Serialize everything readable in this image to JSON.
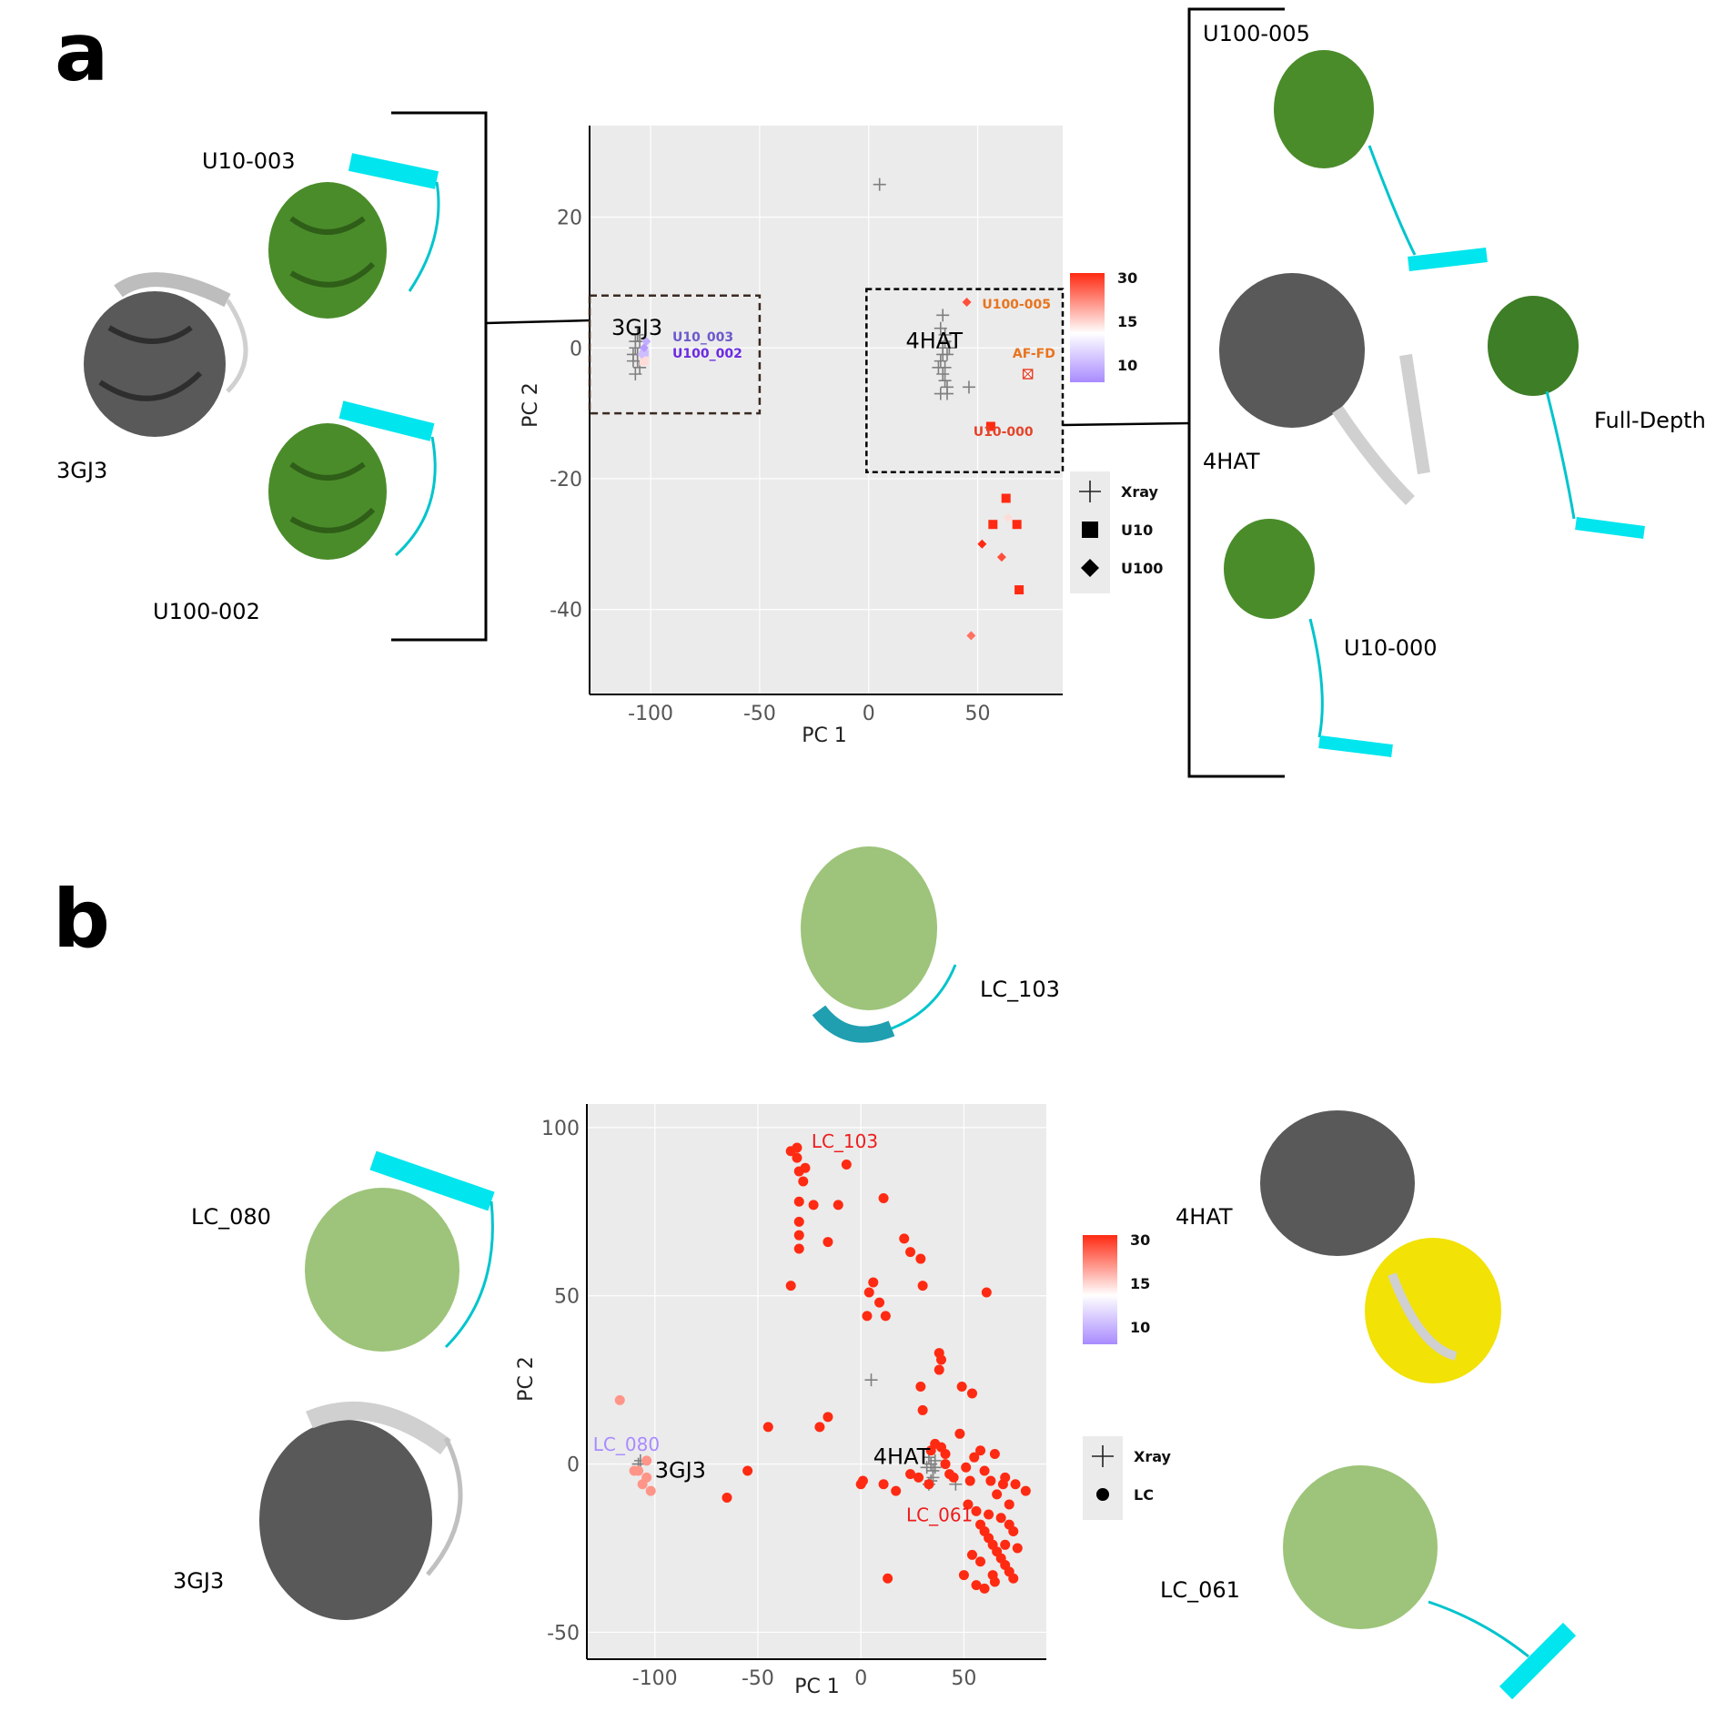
{
  "panels": {
    "a": "a",
    "b": "b"
  },
  "panel_a": {
    "labels": {
      "left_ref": "3GJ3",
      "left_top": "U10-003",
      "left_bottom": "U100-002",
      "right_top": "U100-005",
      "right_ref": "4HAT",
      "right_full": "Full-Depth",
      "right_bottom": "U10-000"
    }
  },
  "panel_b": {
    "labels": {
      "top": "LC_103",
      "left_top": "LC_080",
      "left_ref": "3GJ3",
      "right_ref": "4HAT",
      "right_bottom": "LC_061"
    }
  },
  "colors": {
    "xray": "#7f7f7f",
    "ref_gray": "#595959",
    "model_green": "#4a8c2a",
    "model_lightgreen": "#9dc47a",
    "helix_cyan": "#00e5ee",
    "yellow": "#f2e205",
    "scale_low": "#a98bff",
    "scale_mid": "#ffffff",
    "scale_high": "#ff2a12",
    "panel_bg": "#ebebeb"
  },
  "chart_data": [
    {
      "type": "scatter",
      "xlabel": "PC 1",
      "ylabel": "PC 2",
      "xlim": [
        -128,
        89
      ],
      "ylim": [
        -53,
        34
      ],
      "xticks": [
        -100,
        -50,
        0,
        50
      ],
      "yticks": [
        20,
        0,
        -20,
        -40
      ],
      "grid": true,
      "colorbar": {
        "ticks": [
          30,
          15,
          10
        ]
      },
      "legend": {
        "position": "right",
        "entries": [
          "Xray",
          "U10",
          "U100"
        ]
      },
      "series": [
        {
          "name": "Xray",
          "marker": "plus",
          "points": [
            [
              5,
              25
            ],
            [
              -107,
              1
            ],
            [
              -106,
              -1
            ],
            [
              -108,
              -2
            ],
            [
              -105,
              -3
            ],
            [
              -107,
              0
            ],
            [
              -106,
              2
            ],
            [
              -104,
              -1
            ],
            [
              -108,
              -1
            ],
            [
              -105,
              1
            ],
            [
              -107,
              -4
            ],
            [
              -106,
              -2
            ],
            [
              34,
              5
            ],
            [
              33,
              3
            ],
            [
              35,
              2
            ],
            [
              34,
              0
            ],
            [
              36,
              -1
            ],
            [
              33,
              -2
            ],
            [
              35,
              -3
            ],
            [
              34,
              -4
            ],
            [
              36,
              -6
            ],
            [
              33,
              -7
            ],
            [
              36,
              -7
            ],
            [
              35,
              1
            ],
            [
              34,
              -1
            ],
            [
              37,
              0
            ],
            [
              32,
              -3
            ],
            [
              35,
              -5
            ],
            [
              46,
              -6
            ]
          ]
        },
        {
          "name": "U10",
          "marker": "square",
          "points": [
            [
              -103,
              -1,
              8
            ],
            [
              -103,
              -2,
              14
            ],
            [
              56,
              -12,
              26
            ],
            [
              57,
              -27,
              24
            ],
            [
              63,
              -23,
              25
            ],
            [
              68,
              -27,
              24
            ],
            [
              69,
              -37,
              25
            ]
          ]
        },
        {
          "name": "U100",
          "marker": "diamond",
          "points": [
            [
              -103,
              0,
              6
            ],
            [
              -102,
              1,
              7
            ],
            [
              -104,
              -1,
              8
            ],
            [
              45,
              7,
              22
            ],
            [
              52,
              -30,
              24
            ],
            [
              61,
              -32,
              22
            ],
            [
              64,
              -26,
              14
            ],
            [
              47,
              -44,
              20
            ]
          ]
        }
      ],
      "annotations": [
        {
          "text": "3GJ3",
          "x": -118,
          "y": 2,
          "color": "#000000"
        },
        {
          "text": "4HAT",
          "x": 17,
          "y": 0,
          "color": "#000000"
        },
        {
          "text": "U10_003",
          "x": -90,
          "y": 1,
          "color": "#6a5acd"
        },
        {
          "text": "U100_002",
          "x": -90,
          "y": -1.5,
          "color": "#6a2be2"
        },
        {
          "text": "U100-005",
          "x": 52,
          "y": 6,
          "color": "#e8741e"
        },
        {
          "text": "AF-FD",
          "x": 66,
          "y": -1.5,
          "color": "#e8741e"
        },
        {
          "text": "U10-000",
          "x": 48,
          "y": -13.5,
          "color": "#e5432a"
        }
      ],
      "af_fd_point": [
        73,
        -4
      ]
    },
    {
      "type": "scatter",
      "xlabel": "PC 1",
      "ylabel": "PC 2",
      "xlim": [
        -133,
        90
      ],
      "ylim": [
        -58,
        107
      ],
      "xticks": [
        -100,
        -50,
        0,
        50
      ],
      "yticks": [
        100,
        50,
        0,
        -50
      ],
      "grid": true,
      "colorbar": {
        "ticks": [
          30,
          15,
          10
        ]
      },
      "legend": {
        "position": "right",
        "entries": [
          "Xray",
          "LC"
        ]
      },
      "series": [
        {
          "name": "Xray",
          "marker": "plus",
          "points": [
            [
              5,
              25
            ],
            [
              -108,
              0
            ],
            [
              -107,
              1
            ],
            [
              34,
              0
            ],
            [
              35,
              -2
            ],
            [
              33,
              2
            ],
            [
              36,
              -1
            ],
            [
              34,
              -5
            ],
            [
              35,
              -4
            ],
            [
              33,
              -6
            ],
            [
              46,
              -6
            ],
            [
              36,
              1
            ],
            [
              32,
              -1
            ]
          ]
        },
        {
          "name": "LC",
          "marker": "circle",
          "points": [
            [
              -34,
              93
            ],
            [
              -31,
              94
            ],
            [
              -31,
              91
            ],
            [
              -30,
              87
            ],
            [
              -27,
              88
            ],
            [
              -7,
              89
            ],
            [
              -28,
              84
            ],
            [
              -30,
              78
            ],
            [
              -30,
              72
            ],
            [
              -30,
              68
            ],
            [
              -23,
              77
            ],
            [
              -30,
              64
            ],
            [
              -34,
              53
            ],
            [
              -11,
              77
            ],
            [
              11,
              79
            ],
            [
              -16,
              66
            ],
            [
              6,
              54
            ],
            [
              4,
              51
            ],
            [
              3,
              44
            ],
            [
              9,
              48
            ],
            [
              12,
              44
            ],
            [
              21,
              67
            ],
            [
              24,
              63
            ],
            [
              29,
              61
            ],
            [
              30,
              53
            ],
            [
              -45,
              11
            ],
            [
              -20,
              11
            ],
            [
              -16,
              14
            ],
            [
              -117,
              19
            ],
            [
              -110,
              -2
            ],
            [
              -104,
              1
            ],
            [
              -104,
              -4
            ],
            [
              -102,
              -8
            ],
            [
              -108,
              -2
            ],
            [
              -106,
              -6
            ],
            [
              -55,
              -2
            ],
            [
              -65,
              -10
            ],
            [
              1,
              -5
            ],
            [
              0,
              -6
            ],
            [
              11,
              -6
            ],
            [
              17,
              -8
            ],
            [
              13,
              -34
            ],
            [
              24,
              -3
            ],
            [
              28,
              -4
            ],
            [
              29,
              23
            ],
            [
              30,
              16
            ],
            [
              38,
              33
            ],
            [
              39,
              31
            ],
            [
              38,
              28
            ],
            [
              49,
              23
            ],
            [
              54,
              21
            ],
            [
              61,
              51
            ],
            [
              34,
              4
            ],
            [
              36,
              6
            ],
            [
              39,
              5
            ],
            [
              41,
              3
            ],
            [
              41,
              0
            ],
            [
              33,
              -6
            ],
            [
              43,
              -3
            ],
            [
              45,
              -4
            ],
            [
              48,
              9
            ],
            [
              51,
              -1
            ],
            [
              53,
              -5
            ],
            [
              55,
              2
            ],
            [
              58,
              4
            ],
            [
              60,
              -2
            ],
            [
              63,
              -5
            ],
            [
              65,
              3
            ],
            [
              66,
              -9
            ],
            [
              69,
              -6
            ],
            [
              70,
              -4
            ],
            [
              75,
              -6
            ],
            [
              80,
              -8
            ],
            [
              52,
              -12
            ],
            [
              56,
              -14
            ],
            [
              58,
              -18
            ],
            [
              60,
              -20
            ],
            [
              62,
              -22
            ],
            [
              64,
              -24
            ],
            [
              66,
              -26
            ],
            [
              68,
              -28
            ],
            [
              70,
              -30
            ],
            [
              72,
              -32
            ],
            [
              74,
              -34
            ],
            [
              65,
              -35
            ],
            [
              60,
              -37
            ],
            [
              56,
              -36
            ],
            [
              62,
              -15
            ],
            [
              68,
              -16
            ],
            [
              72,
              -18
            ],
            [
              74,
              -20
            ],
            [
              58,
              -29
            ],
            [
              54,
              -27
            ],
            [
              50,
              -33
            ],
            [
              64,
              -33
            ],
            [
              70,
              -24
            ],
            [
              76,
              -25
            ],
            [
              72,
              -12
            ]
          ]
        }
      ],
      "annotations": [
        {
          "text": "LC_103",
          "x": -24,
          "y": 94,
          "color": "#ee1c1c"
        },
        {
          "text": "LC_080",
          "x": -130,
          "y": 4,
          "color": "#a98bff"
        },
        {
          "text": "3GJ3",
          "x": -100,
          "y": -4,
          "color": "#000000"
        },
        {
          "text": "4HAT",
          "x": 6,
          "y": 0,
          "color": "#000000"
        },
        {
          "text": "LC_061",
          "x": 22,
          "y": -17,
          "color": "#ee1c1c"
        }
      ]
    }
  ]
}
